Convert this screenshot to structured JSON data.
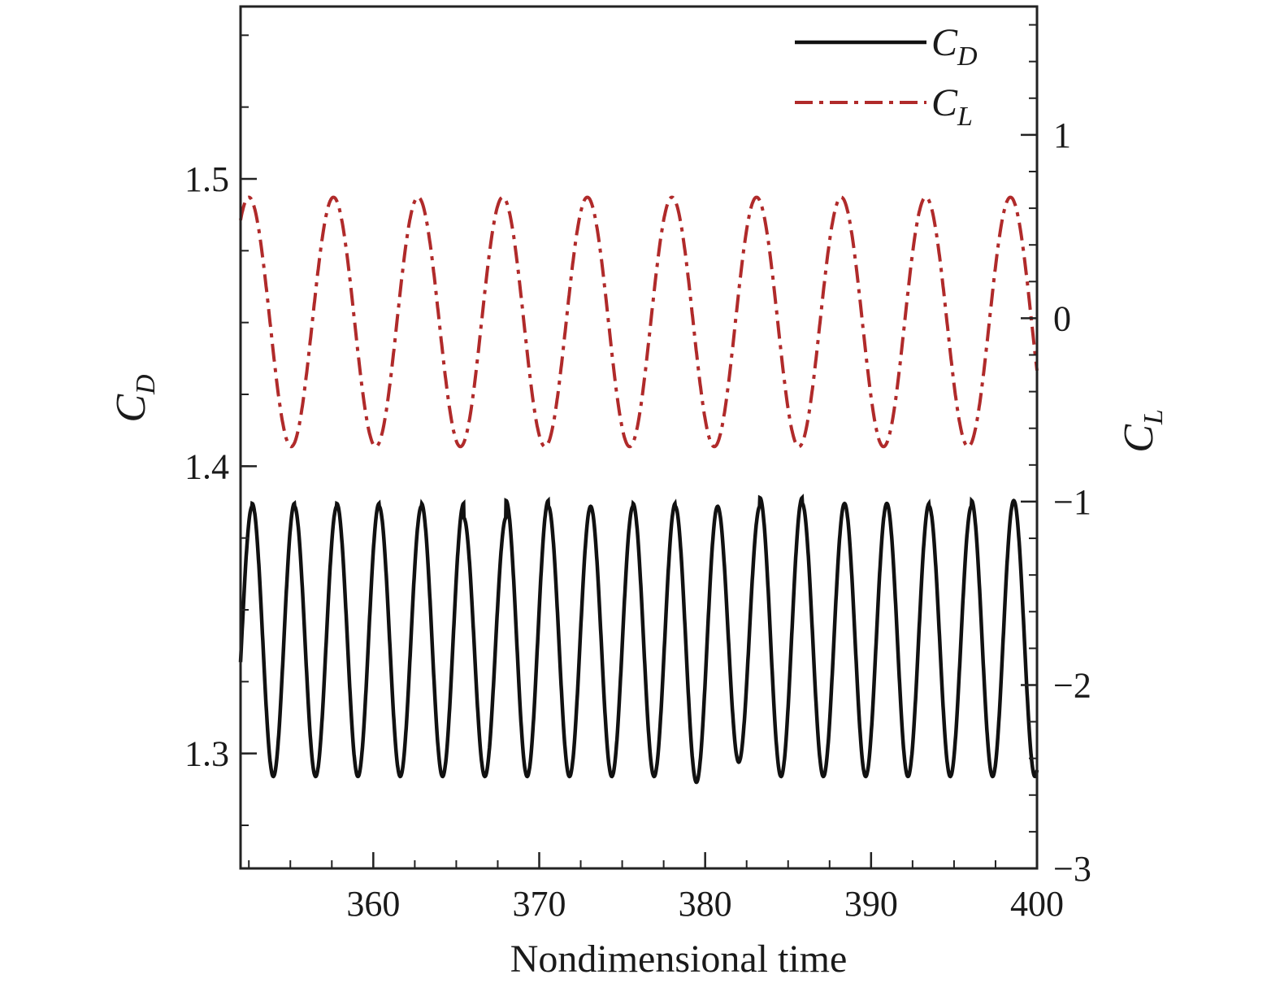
{
  "chart_data": {
    "type": "line",
    "xlabel": "Nondimensional time",
    "xlim": [
      352,
      400
    ],
    "xticks": [
      360,
      370,
      380,
      390,
      400
    ],
    "x_minor_step": 2.5,
    "y_left": {
      "symbol": "C",
      "subscript": "D",
      "lim": [
        1.26,
        1.56
      ],
      "ticks": [
        1.3,
        1.4,
        1.5
      ],
      "tick_labels": [
        "1.3",
        "1.4",
        "1.5"
      ],
      "minor_step": 0.025
    },
    "y_right": {
      "symbol": "C",
      "subscript": "L",
      "lim": [
        -3,
        1.7
      ],
      "ticks": [
        1,
        0,
        -1,
        -2,
        -3
      ],
      "tick_labels": [
        "1",
        "0",
        "−1",
        "−2",
        "−3"
      ],
      "minor_step": 0.2
    },
    "series": [
      {
        "name": "C_D",
        "label_symbol": "C",
        "label_subscript": "D",
        "axis": "left",
        "color": "#111111",
        "style": "solid",
        "t_start": 352,
        "period": 2.55,
        "phase_peak": 352.7,
        "peaks": [
          1.386,
          1.387,
          1.386,
          1.387,
          1.386,
          1.387,
          1.382,
          1.388,
          1.386,
          1.386,
          1.387,
          1.386,
          1.386,
          1.389,
          1.387,
          1.387,
          1.387,
          1.386,
          1.388
        ],
        "troughs": [
          1.292,
          1.292,
          1.292,
          1.292,
          1.292,
          1.292,
          1.292,
          1.292,
          1.292,
          1.292,
          1.292,
          1.29,
          1.297,
          1.292,
          1.292,
          1.292,
          1.292,
          1.292,
          1.292
        ]
      },
      {
        "name": "C_L",
        "label_symbol": "C",
        "label_subscript": "L",
        "axis": "right",
        "color": "#b02a2a",
        "style": "dash-dot",
        "t_start": 352,
        "period": 5.1,
        "phase_peak": 352.5,
        "amplitude_max": 0.66,
        "amplitude_min": -0.7
      }
    ]
  }
}
